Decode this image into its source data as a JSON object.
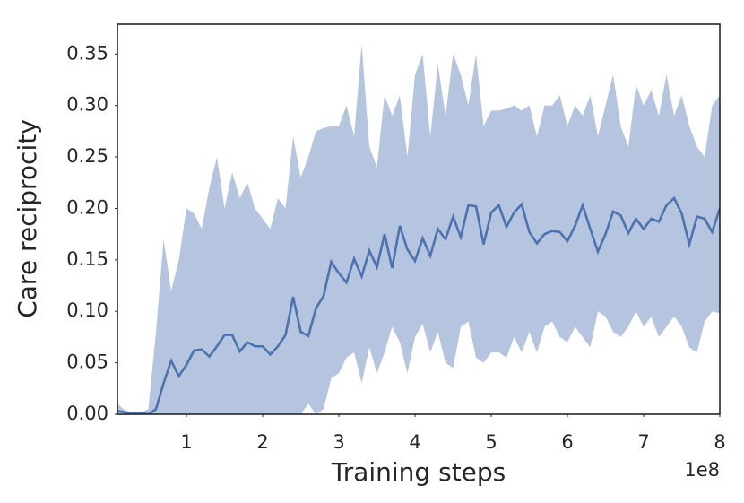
{
  "chart_data": {
    "type": "line_band",
    "xlabel": "Training steps",
    "ylabel": "Care reciprocity",
    "x_offset_label": "1e8",
    "xlim": [
      0.094,
      8
    ],
    "ylim": [
      0,
      0.379
    ],
    "xticks": [
      1,
      2,
      3,
      4,
      5,
      6,
      7,
      8
    ],
    "yticks": [
      {
        "value": 0,
        "label": "0.00"
      },
      {
        "value": 0.05,
        "label": "0.05"
      },
      {
        "value": 0.1,
        "label": "0.10"
      },
      {
        "value": 0.15,
        "label": "0.15"
      },
      {
        "value": 0.2,
        "label": "0.20"
      },
      {
        "value": 0.25,
        "label": "0.25"
      },
      {
        "value": 0.3,
        "label": "0.30"
      },
      {
        "value": 0.35,
        "label": "0.35"
      }
    ],
    "x": [
      0.1,
      0.2,
      0.3,
      0.4,
      0.5,
      0.6,
      0.7,
      0.8,
      0.9,
      1.0,
      1.1,
      1.2,
      1.3,
      1.4,
      1.5,
      1.6,
      1.7,
      1.8,
      1.9,
      2.0,
      2.1,
      2.2,
      2.3,
      2.4,
      2.5,
      2.6,
      2.7,
      2.8,
      2.9,
      3.0,
      3.1,
      3.2,
      3.3,
      3.4,
      3.5,
      3.6,
      3.7,
      3.8,
      3.9,
      4.0,
      4.1,
      4.2,
      4.3,
      4.4,
      4.5,
      4.6,
      4.7,
      4.8,
      4.9,
      5.0,
      5.1,
      5.2,
      5.3,
      5.4,
      5.5,
      5.6,
      5.7,
      5.8,
      5.9,
      6.0,
      6.1,
      6.2,
      6.3,
      6.4,
      6.5,
      6.6,
      6.7,
      6.8,
      6.9,
      7.0,
      7.1,
      7.2,
      7.3,
      7.4,
      7.5,
      7.6,
      7.7,
      7.8,
      7.9,
      8.0
    ],
    "series": [
      {
        "color": "#4c72b0",
        "band_color": "#b5c5df",
        "values": [
          0.003,
          0.002,
          0.001,
          0.001,
          0.0,
          0.005,
          0.03,
          0.052,
          0.037,
          0.048,
          0.062,
          0.063,
          0.056,
          0.066,
          0.077,
          0.077,
          0.061,
          0.07,
          0.066,
          0.066,
          0.058,
          0.066,
          0.077,
          0.114,
          0.08,
          0.076,
          0.103,
          0.115,
          0.148,
          0.137,
          0.128,
          0.151,
          0.134,
          0.159,
          0.143,
          0.175,
          0.142,
          0.183,
          0.16,
          0.149,
          0.171,
          0.154,
          0.18,
          0.17,
          0.192,
          0.172,
          0.203,
          0.202,
          0.165,
          0.196,
          0.203,
          0.182,
          0.196,
          0.204,
          0.177,
          0.166,
          0.175,
          0.178,
          0.177,
          0.168,
          0.183,
          0.203,
          0.18,
          0.158,
          0.175,
          0.197,
          0.193,
          0.176,
          0.19,
          0.18,
          0.19,
          0.187,
          0.203,
          0.21,
          0.195,
          0.165,
          0.192,
          0.19,
          0.177,
          0.2
        ],
        "lower": [
          0,
          0,
          0,
          0,
          0,
          0,
          0,
          0,
          0,
          0,
          0,
          0,
          0,
          0,
          0,
          0,
          0,
          0,
          0,
          0,
          0,
          0,
          0,
          0,
          0,
          0.01,
          0,
          0.005,
          0.035,
          0.04,
          0.055,
          0.06,
          0.03,
          0.065,
          0.04,
          0.06,
          0.085,
          0.07,
          0.04,
          0.075,
          0.088,
          0.06,
          0.08,
          0.05,
          0.045,
          0.085,
          0.09,
          0.055,
          0.05,
          0.06,
          0.06,
          0.055,
          0.075,
          0.06,
          0.08,
          0.06,
          0.085,
          0.09,
          0.075,
          0.07,
          0.085,
          0.075,
          0.065,
          0.1,
          0.095,
          0.08,
          0.075,
          0.085,
          0.1,
          0.085,
          0.095,
          0.075,
          0.085,
          0.095,
          0.085,
          0.065,
          0.06,
          0.09,
          0.1,
          0.098
        ],
        "upper": [
          0.01,
          0.003,
          0.002,
          0.002,
          0.005,
          0.08,
          0.17,
          0.12,
          0.15,
          0.2,
          0.195,
          0.18,
          0.22,
          0.25,
          0.2,
          0.235,
          0.21,
          0.225,
          0.2,
          0.19,
          0.18,
          0.21,
          0.2,
          0.27,
          0.23,
          0.25,
          0.275,
          0.278,
          0.28,
          0.28,
          0.3,
          0.27,
          0.36,
          0.26,
          0.24,
          0.31,
          0.29,
          0.31,
          0.25,
          0.33,
          0.35,
          0.27,
          0.34,
          0.29,
          0.35,
          0.33,
          0.3,
          0.35,
          0.28,
          0.295,
          0.295,
          0.297,
          0.3,
          0.295,
          0.3,
          0.27,
          0.3,
          0.3,
          0.31,
          0.28,
          0.3,
          0.29,
          0.31,
          0.27,
          0.3,
          0.33,
          0.28,
          0.26,
          0.32,
          0.3,
          0.315,
          0.29,
          0.33,
          0.29,
          0.31,
          0.28,
          0.26,
          0.25,
          0.3,
          0.31
        ]
      }
    ]
  }
}
